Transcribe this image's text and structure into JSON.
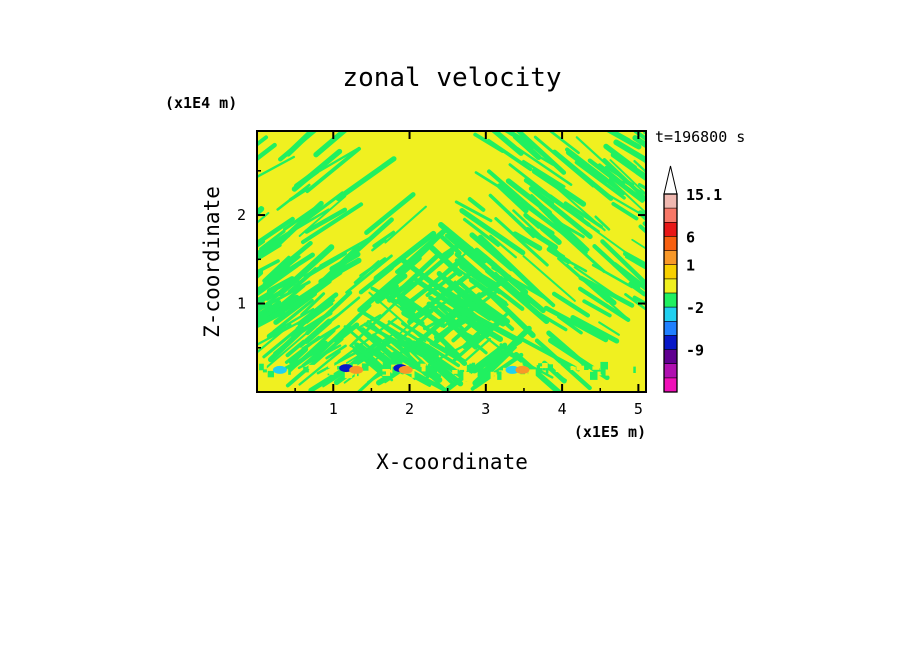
{
  "chart_data": {
    "type": "heatmap",
    "title": "zonal velocity",
    "xlabel": "X-coordinate",
    "ylabel": "Z-coordinate",
    "x_unit": "(x1E5 m)",
    "y_unit": "(x1E4 m)",
    "xlim": [
      0,
      5.1
    ],
    "ylim": [
      0,
      2.95
    ],
    "x_ticks": [
      1,
      2,
      3,
      4,
      5
    ],
    "y_ticks": [
      1,
      2
    ],
    "time_label": "t=196800 s",
    "colorbar": {
      "levels": [
        "15.1",
        "6",
        "1",
        "-2",
        "-9"
      ],
      "bins": [
        {
          "color": "#f0b8b0"
        },
        {
          "color": "#f87868"
        },
        {
          "color": "#e81818"
        },
        {
          "color": "#f86010"
        },
        {
          "color": "#f89828"
        },
        {
          "color": "#f8d000"
        },
        {
          "color": "#f0f020"
        },
        {
          "color": "#20f060"
        },
        {
          "color": "#20d0f0"
        },
        {
          "color": "#2080ff"
        },
        {
          "color": "#0818c8"
        },
        {
          "color": "#600090"
        },
        {
          "color": "#b010b0"
        },
        {
          "color": "#f010b8"
        }
      ],
      "level_positions": [
        0,
        3,
        5,
        8,
        11
      ],
      "arrow_color": "#ffffff"
    },
    "field_colors": {
      "positive": "#f0f020",
      "negative": "#20f060",
      "strong_negative": "#20d0f0",
      "strongest_negative": "#0818c8",
      "strong_positive": "#f89828"
    },
    "surface_features": [
      {
        "x": 0.3,
        "z": 0.25,
        "kind": "strong_negative"
      },
      {
        "x": 1.17,
        "z": 0.27,
        "kind": "strongest_negative"
      },
      {
        "x": 1.3,
        "z": 0.25,
        "kind": "strong_positive"
      },
      {
        "x": 1.88,
        "z": 0.27,
        "kind": "strongest_negative"
      },
      {
        "x": 1.95,
        "z": 0.25,
        "kind": "strong_positive"
      },
      {
        "x": 3.35,
        "z": 0.25,
        "kind": "strong_negative"
      },
      {
        "x": 3.48,
        "z": 0.25,
        "kind": "strong_positive"
      }
    ]
  }
}
